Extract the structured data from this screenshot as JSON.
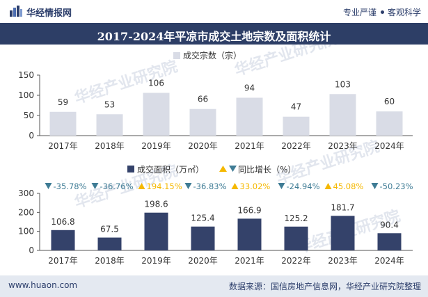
{
  "header": {
    "brand": "华经情报网",
    "slogan_left": "专业严谨",
    "slogan_right": "客观科学"
  },
  "title": "2017-2024年平凉市成交土地宗数及面积统计",
  "watermark": "华经产业研究院",
  "footer": {
    "site": "www.huaon.com",
    "source": "数据来源：国信房地产信息网，华经产业研究院整理"
  },
  "colors": {
    "bar_count": "#d9dce6",
    "bar_area": "#34426a",
    "up": "#f5b800",
    "down": "#3f7c95",
    "title_bg": "#2d3e66"
  },
  "chart_data": [
    {
      "type": "bar",
      "legend": "成交宗数（宗）",
      "categories": [
        "2017年",
        "2018年",
        "2019年",
        "2020年",
        "2021年",
        "2022年",
        "2023年",
        "2024年"
      ],
      "values": [
        59,
        53,
        106,
        66,
        94,
        47,
        103,
        60
      ],
      "ylim": [
        0,
        150
      ],
      "yticks": [
        0,
        50,
        100,
        150
      ]
    },
    {
      "type": "bar",
      "legend": "成交面积（万㎡）",
      "growth_legend": "同比增长（%）",
      "categories": [
        "2017年",
        "2018年",
        "2019年",
        "2020年",
        "2021年",
        "2022年",
        "2023年",
        "2024年"
      ],
      "values": [
        106.8,
        67.5,
        198.6,
        125.4,
        166.9,
        125.2,
        181.7,
        90.4
      ],
      "growth": [
        {
          "dir": "down",
          "label": "-35.78%"
        },
        {
          "dir": "down",
          "label": "-36.76%"
        },
        {
          "dir": "up",
          "label": "194.15%"
        },
        {
          "dir": "down",
          "label": "-36.83%"
        },
        {
          "dir": "up",
          "label": "33.02%"
        },
        {
          "dir": "down",
          "label": "-24.94%"
        },
        {
          "dir": "up",
          "label": "45.08%"
        },
        {
          "dir": "down",
          "label": "-50.23%"
        }
      ],
      "ylim": [
        0,
        300
      ],
      "yticks": [
        0,
        100,
        200,
        300
      ]
    }
  ]
}
